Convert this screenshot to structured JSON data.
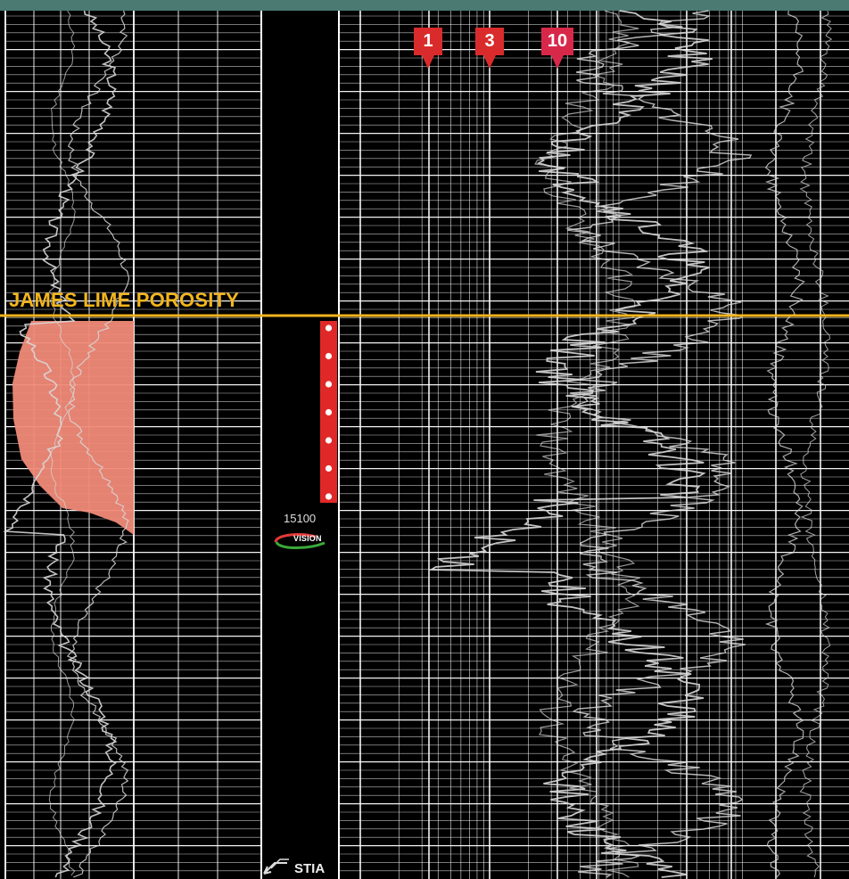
{
  "zone": {
    "label": "JAMES LIME POROSITY",
    "line_color": "#f2b51c"
  },
  "depth_label": "15100",
  "logo": {
    "text": "VISION",
    "colors": [
      "#e23a3a",
      "#3aa83a"
    ]
  },
  "markers": [
    {
      "label": "1",
      "color": "#d92b2b"
    },
    {
      "label": "3",
      "color": "#d92b2b"
    },
    {
      "label": "10",
      "color": "#d8284a"
    }
  ],
  "core_interval": {
    "color": "#e02828",
    "dot_count": 7
  },
  "porosity_fill_color": "#f08a78",
  "bottom_label": "STIA",
  "colors": {
    "background": "#000000",
    "grid": "#ffffff",
    "curves": "#d8d8d8",
    "header_bar": "#4a7a72"
  }
}
